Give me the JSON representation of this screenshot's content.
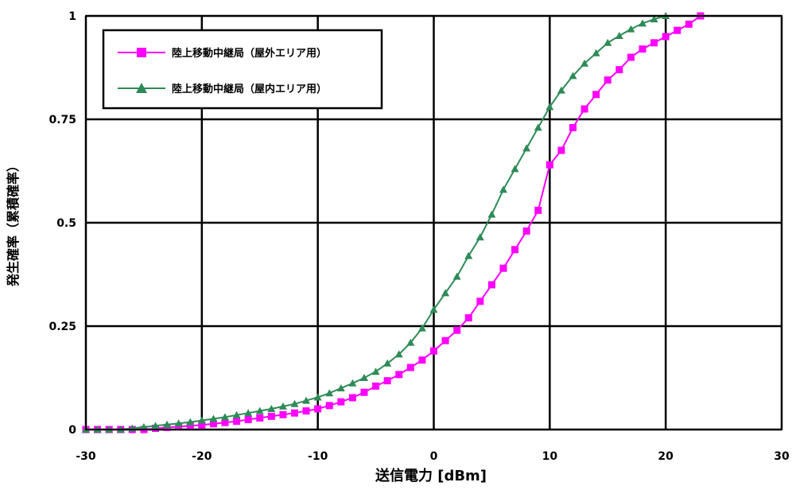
{
  "chart_data": {
    "type": "line",
    "xlabel": "送信電力 [dBm]",
    "ylabel": "発生確率（累積確率）",
    "xlim": [
      -30,
      30
    ],
    "ylim": [
      0,
      1
    ],
    "xticks": [
      -30,
      -20,
      -10,
      0,
      10,
      20,
      30
    ],
    "xtick_labels": [
      "-30",
      "-20",
      "-10",
      "0",
      "10",
      "20",
      "30"
    ],
    "yticks": [
      0,
      0.25,
      0.5,
      0.75,
      1
    ],
    "ytick_labels": [
      "0",
      "0.25",
      "0.5",
      "0.75",
      "1"
    ],
    "grid": true,
    "legend_position": "top-left",
    "series": [
      {
        "name": "陸上移動中継局（屋外エリア用）",
        "color": "#ff00ff",
        "marker": "square",
        "x": [
          -30,
          -29,
          -28,
          -27,
          -26,
          -25,
          -24,
          -23,
          -22,
          -21,
          -20,
          -19,
          -18,
          -17,
          -16,
          -15,
          -14,
          -13,
          -12,
          -11,
          -10,
          -9,
          -8,
          -7,
          -6,
          -5,
          -4,
          -3,
          -2,
          -1,
          0,
          1,
          2,
          3,
          4,
          5,
          6,
          7,
          8,
          9,
          10,
          11,
          12,
          13,
          14,
          15,
          16,
          17,
          18,
          19,
          20,
          21,
          22,
          23
        ],
        "y": [
          0,
          0,
          0,
          0,
          0,
          0,
          0.003,
          0.005,
          0.007,
          0.009,
          0.011,
          0.014,
          0.017,
          0.02,
          0.024,
          0.028,
          0.032,
          0.036,
          0.04,
          0.045,
          0.05,
          0.058,
          0.067,
          0.077,
          0.09,
          0.105,
          0.118,
          0.133,
          0.15,
          0.168,
          0.19,
          0.215,
          0.24,
          0.27,
          0.31,
          0.35,
          0.39,
          0.435,
          0.48,
          0.53,
          0.64,
          0.675,
          0.73,
          0.775,
          0.81,
          0.845,
          0.87,
          0.9,
          0.92,
          0.935,
          0.95,
          0.965,
          0.98,
          1.0
        ]
      },
      {
        "name": "陸上移動中継局（屋内エリア用）",
        "color": "#2e8b57",
        "marker": "triangle",
        "x": [
          -30,
          -29,
          -28,
          -27,
          -26,
          -25,
          -24,
          -23,
          -22,
          -21,
          -20,
          -19,
          -18,
          -17,
          -16,
          -15,
          -14,
          -13,
          -12,
          -11,
          -10,
          -9,
          -8,
          -7,
          -6,
          -5,
          -4,
          -3,
          -2,
          -1,
          0,
          1,
          2,
          3,
          4,
          5,
          6,
          7,
          8,
          9,
          10,
          11,
          12,
          13,
          14,
          15,
          16,
          17,
          18,
          19,
          20
        ],
        "y": [
          0,
          0,
          0,
          0,
          0.003,
          0.006,
          0.009,
          0.012,
          0.015,
          0.018,
          0.022,
          0.026,
          0.03,
          0.035,
          0.04,
          0.045,
          0.05,
          0.056,
          0.062,
          0.07,
          0.078,
          0.088,
          0.1,
          0.112,
          0.125,
          0.14,
          0.16,
          0.182,
          0.21,
          0.245,
          0.29,
          0.33,
          0.37,
          0.42,
          0.465,
          0.52,
          0.58,
          0.63,
          0.68,
          0.73,
          0.78,
          0.82,
          0.855,
          0.885,
          0.91,
          0.935,
          0.952,
          0.968,
          0.982,
          0.992,
          1.0
        ]
      }
    ]
  }
}
